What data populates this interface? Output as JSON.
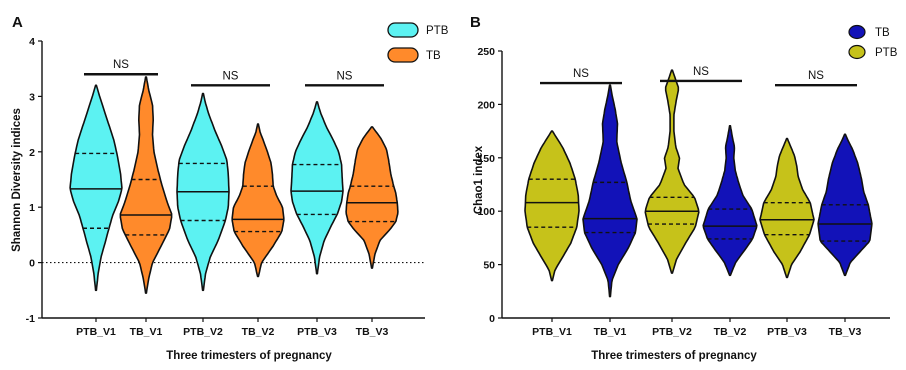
{
  "chart_data": [
    {
      "panel": "A",
      "type": "violin",
      "xlabel": "Three trimesters of pregnancy",
      "ylabel": "Shannon Diversity indices",
      "ylim": [
        -1,
        4
      ],
      "yticks": [
        "-1",
        "0",
        "1",
        "2",
        "3",
        "4"
      ],
      "reference_line_y": 0,
      "categories": [
        "PTB_V1",
        "TB_V1",
        "PTB_V2",
        "TB_V2",
        "PTB_V3",
        "TB_V3"
      ],
      "category_group": [
        "PTB",
        "TB",
        "PTB",
        "TB",
        "PTB",
        "TB"
      ],
      "legend": {
        "placement": "top-right",
        "entries": [
          {
            "label": "PTB",
            "color": "#5cf2f2"
          },
          {
            "label": "TB",
            "color": "#ff8a2b"
          }
        ]
      },
      "violins": [
        {
          "min": -0.5,
          "max": 3.2,
          "median": 1.33,
          "q1": 0.62,
          "q3": 1.97,
          "profile": [
            [
              -0.5,
              0.01
            ],
            [
              -0.2,
              0.06
            ],
            [
              0.1,
              0.14
            ],
            [
              0.4,
              0.27
            ],
            [
              0.62,
              0.36
            ],
            [
              0.85,
              0.46
            ],
            [
              1.1,
              0.62
            ],
            [
              1.33,
              0.72
            ],
            [
              1.6,
              0.68
            ],
            [
              1.9,
              0.6
            ],
            [
              2.2,
              0.5
            ],
            [
              2.5,
              0.35
            ],
            [
              2.8,
              0.2
            ],
            [
              3.0,
              0.1
            ],
            [
              3.2,
              0.01
            ]
          ]
        },
        {
          "min": -0.55,
          "max": 3.35,
          "median": 0.86,
          "q1": 0.5,
          "q3": 1.5,
          "profile": [
            [
              -0.55,
              0.01
            ],
            [
              -0.3,
              0.07
            ],
            [
              0.0,
              0.18
            ],
            [
              0.3,
              0.42
            ],
            [
              0.6,
              0.65
            ],
            [
              0.86,
              0.72
            ],
            [
              1.1,
              0.58
            ],
            [
              1.4,
              0.44
            ],
            [
              1.7,
              0.32
            ],
            [
              2.0,
              0.22
            ],
            [
              2.3,
              0.18
            ],
            [
              2.6,
              0.2
            ],
            [
              2.85,
              0.18
            ],
            [
              3.1,
              0.08
            ],
            [
              3.35,
              0.01
            ]
          ]
        },
        {
          "min": -0.5,
          "max": 3.05,
          "median": 1.28,
          "q1": 0.76,
          "q3": 1.79,
          "profile": [
            [
              -0.5,
              0.01
            ],
            [
              -0.2,
              0.07
            ],
            [
              0.1,
              0.2
            ],
            [
              0.4,
              0.42
            ],
            [
              0.76,
              0.62
            ],
            [
              1.0,
              0.7
            ],
            [
              1.28,
              0.72
            ],
            [
              1.6,
              0.7
            ],
            [
              1.85,
              0.66
            ],
            [
              2.1,
              0.52
            ],
            [
              2.4,
              0.32
            ],
            [
              2.7,
              0.15
            ],
            [
              2.9,
              0.06
            ],
            [
              3.05,
              0.01
            ]
          ]
        },
        {
          "min": -0.25,
          "max": 2.5,
          "median": 0.78,
          "q1": 0.56,
          "q3": 1.38,
          "profile": [
            [
              -0.25,
              0.01
            ],
            [
              0.0,
              0.1
            ],
            [
              0.3,
              0.42
            ],
            [
              0.56,
              0.66
            ],
            [
              0.78,
              0.72
            ],
            [
              1.0,
              0.68
            ],
            [
              1.2,
              0.52
            ],
            [
              1.38,
              0.42
            ],
            [
              1.6,
              0.4
            ],
            [
              1.8,
              0.36
            ],
            [
              2.0,
              0.26
            ],
            [
              2.2,
              0.15
            ],
            [
              2.35,
              0.06
            ],
            [
              2.5,
              0.01
            ]
          ]
        },
        {
          "min": -0.2,
          "max": 2.9,
          "median": 1.29,
          "q1": 0.87,
          "q3": 1.77,
          "profile": [
            [
              -0.2,
              0.01
            ],
            [
              0.1,
              0.07
            ],
            [
              0.4,
              0.2
            ],
            [
              0.7,
              0.42
            ],
            [
              0.87,
              0.56
            ],
            [
              1.1,
              0.68
            ],
            [
              1.29,
              0.72
            ],
            [
              1.5,
              0.7
            ],
            [
              1.77,
              0.68
            ],
            [
              2.0,
              0.6
            ],
            [
              2.2,
              0.46
            ],
            [
              2.45,
              0.26
            ],
            [
              2.7,
              0.1
            ],
            [
              2.9,
              0.01
            ]
          ]
        },
        {
          "min": -0.1,
          "max": 2.45,
          "median": 1.08,
          "q1": 0.74,
          "q3": 1.38,
          "profile": [
            [
              -0.1,
              0.01
            ],
            [
              0.15,
              0.08
            ],
            [
              0.4,
              0.22
            ],
            [
              0.6,
              0.5
            ],
            [
              0.74,
              0.66
            ],
            [
              0.9,
              0.72
            ],
            [
              1.08,
              0.7
            ],
            [
              1.25,
              0.66
            ],
            [
              1.38,
              0.6
            ],
            [
              1.6,
              0.52
            ],
            [
              1.85,
              0.46
            ],
            [
              2.05,
              0.4
            ],
            [
              2.25,
              0.24
            ],
            [
              2.45,
              0.01
            ]
          ]
        }
      ],
      "comparisons": [
        {
          "between": [
            "PTB_V1",
            "TB_V1"
          ],
          "label": "NS",
          "y": 3.4
        },
        {
          "between": [
            "PTB_V2",
            "TB_V2"
          ],
          "label": "NS",
          "y": 3.2
        },
        {
          "between": [
            "PTB_V3",
            "TB_V3"
          ],
          "label": "NS",
          "y": 3.2
        }
      ]
    },
    {
      "panel": "B",
      "type": "violin",
      "xlabel": "Three trimesters of pregnancy",
      "ylabel": "Chao1 index",
      "ylim": [
        0,
        250
      ],
      "yticks": [
        "0",
        "50",
        "100",
        "150",
        "200",
        "250"
      ],
      "categories": [
        "PTB_V1",
        "TB_V1",
        "PTB_V2",
        "TB_V2",
        "PTB_V3",
        "TB_V3"
      ],
      "category_group": [
        "PTB",
        "TB",
        "PTB",
        "TB",
        "PTB",
        "TB"
      ],
      "legend": {
        "placement": "top-right",
        "entries": [
          {
            "label": "TB",
            "color": "#1212b8"
          },
          {
            "label": "PTB",
            "color": "#c6c21a"
          }
        ]
      },
      "violins": [
        {
          "min": 35,
          "max": 175,
          "median": 108,
          "q1": 85,
          "q3": 130,
          "profile": [
            [
              35,
              0.01
            ],
            [
              45,
              0.08
            ],
            [
              55,
              0.25
            ],
            [
              70,
              0.5
            ],
            [
              85,
              0.66
            ],
            [
              100,
              0.72
            ],
            [
              115,
              0.7
            ],
            [
              130,
              0.62
            ],
            [
              145,
              0.48
            ],
            [
              160,
              0.28
            ],
            [
              170,
              0.1
            ],
            [
              175,
              0.01
            ]
          ]
        },
        {
          "min": 20,
          "max": 218,
          "median": 93,
          "q1": 80,
          "q3": 127,
          "profile": [
            [
              20,
              0.01
            ],
            [
              35,
              0.05
            ],
            [
              50,
              0.22
            ],
            [
              65,
              0.48
            ],
            [
              80,
              0.68
            ],
            [
              93,
              0.72
            ],
            [
              110,
              0.55
            ],
            [
              127,
              0.45
            ],
            [
              145,
              0.3
            ],
            [
              165,
              0.18
            ],
            [
              182,
              0.2
            ],
            [
              195,
              0.14
            ],
            [
              208,
              0.06
            ],
            [
              218,
              0.01
            ]
          ]
        },
        {
          "min": 42,
          "max": 232,
          "median": 100,
          "q1": 88,
          "q3": 113,
          "profile": [
            [
              42,
              0.01
            ],
            [
              55,
              0.12
            ],
            [
              70,
              0.36
            ],
            [
              85,
              0.62
            ],
            [
              100,
              0.72
            ],
            [
              113,
              0.6
            ],
            [
              125,
              0.32
            ],
            [
              140,
              0.16
            ],
            [
              150,
              0.2
            ],
            [
              160,
              0.1
            ],
            [
              175,
              0.05
            ],
            [
              190,
              0.05
            ],
            [
              205,
              0.12
            ],
            [
              215,
              0.18
            ],
            [
              225,
              0.08
            ],
            [
              232,
              0.01
            ]
          ]
        },
        {
          "min": 40,
          "max": 180,
          "median": 86,
          "q1": 74,
          "q3": 102,
          "profile": [
            [
              40,
              0.01
            ],
            [
              52,
              0.15
            ],
            [
              65,
              0.42
            ],
            [
              74,
              0.6
            ],
            [
              86,
              0.72
            ],
            [
              102,
              0.58
            ],
            [
              115,
              0.34
            ],
            [
              128,
              0.22
            ],
            [
              138,
              0.14
            ],
            [
              150,
              0.1
            ],
            [
              160,
              0.12
            ],
            [
              170,
              0.06
            ],
            [
              180,
              0.01
            ]
          ]
        },
        {
          "min": 38,
          "max": 168,
          "median": 92,
          "q1": 78,
          "q3": 108,
          "profile": [
            [
              38,
              0.01
            ],
            [
              50,
              0.12
            ],
            [
              62,
              0.35
            ],
            [
              78,
              0.6
            ],
            [
              92,
              0.72
            ],
            [
              108,
              0.62
            ],
            [
              120,
              0.42
            ],
            [
              132,
              0.3
            ],
            [
              142,
              0.26
            ],
            [
              152,
              0.2
            ],
            [
              162,
              0.08
            ],
            [
              168,
              0.01
            ]
          ]
        },
        {
          "min": 40,
          "max": 172,
          "median": 88,
          "q1": 72,
          "q3": 106,
          "profile": [
            [
              40,
              0.01
            ],
            [
              52,
              0.14
            ],
            [
              62,
              0.4
            ],
            [
              72,
              0.66
            ],
            [
              88,
              0.72
            ],
            [
              106,
              0.62
            ],
            [
              118,
              0.5
            ],
            [
              130,
              0.44
            ],
            [
              145,
              0.34
            ],
            [
              158,
              0.2
            ],
            [
              167,
              0.07
            ],
            [
              172,
              0.01
            ]
          ]
        }
      ],
      "comparisons": [
        {
          "between": [
            "PTB_V1",
            "TB_V1"
          ],
          "label": "NS",
          "y": 220
        },
        {
          "between": [
            "PTB_V2",
            "TB_V2"
          ],
          "label": "NS",
          "y": 222
        },
        {
          "between": [
            "PTB_V3",
            "TB_V3"
          ],
          "label": "NS",
          "y": 218
        }
      ]
    }
  ]
}
